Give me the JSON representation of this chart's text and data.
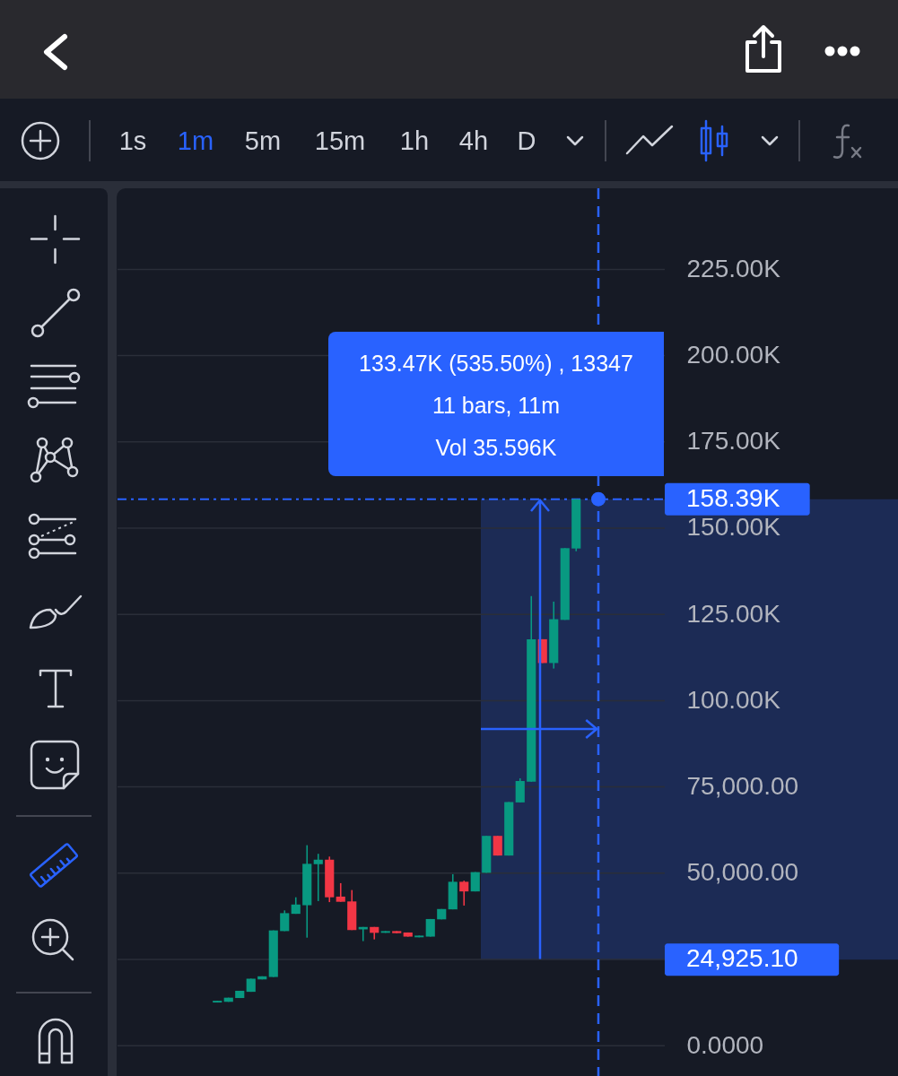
{
  "chart_data": {
    "type": "candlestick",
    "categories": [
      null,
      null,
      null,
      null,
      null,
      null,
      null,
      null,
      null,
      null,
      null,
      null,
      null,
      null,
      null,
      null,
      null,
      null,
      null,
      null,
      null,
      null,
      null,
      null,
      null,
      null,
      null,
      null,
      null,
      null,
      null,
      null,
      null,
      null,
      null,
      null,
      null,
      null,
      null,
      null,
      null,
      null,
      null,
      null,
      null,
      null,
      null,
      null
    ],
    "ohlc": [
      null,
      null,
      null,
      null,
      null,
      null,
      null,
      null,
      [
        12500,
        13000,
        12500,
        13000
      ],
      [
        12700,
        13900,
        12700,
        13900
      ],
      [
        13800,
        15900,
        13800,
        15900
      ],
      [
        15600,
        19400,
        15600,
        19400
      ],
      [
        19200,
        20100,
        19200,
        20100
      ],
      [
        19900,
        33400,
        19900,
        33400
      ],
      [
        33200,
        39200,
        33200,
        38400
      ],
      [
        38200,
        43000,
        38200,
        40900
      ],
      [
        40700,
        58100,
        31300,
        52700
      ],
      [
        52600,
        55600,
        41900,
        53900
      ],
      [
        53900,
        54800,
        41600,
        43000
      ],
      [
        43200,
        47100,
        41700,
        41700
      ],
      [
        41800,
        45100,
        33500,
        33500
      ],
      [
        33700,
        34400,
        30300,
        34400
      ],
      [
        34400,
        34400,
        30800,
        32700
      ],
      [
        32700,
        33200,
        32700,
        33200
      ],
      [
        33200,
        33200,
        32600,
        32600
      ],
      [
        32800,
        32800,
        31600,
        31600
      ],
      [
        31400,
        31900,
        31400,
        31900
      ],
      [
        31600,
        36700,
        31600,
        36700
      ],
      [
        36600,
        39600,
        36600,
        39600
      ],
      [
        39500,
        49700,
        39500,
        47500
      ],
      [
        47500,
        47800,
        40600,
        44700
      ],
      [
        44700,
        50300,
        44700,
        50300
      ],
      [
        50100,
        60800,
        50100,
        60800
      ],
      [
        60800,
        60800,
        55100,
        55100
      ],
      [
        55100,
        70600,
        55100,
        70600
      ],
      [
        70500,
        77500,
        70500,
        76700
      ],
      [
        76500,
        130300,
        76500,
        117800
      ],
      [
        117800,
        117800,
        110900,
        110900
      ],
      [
        110900,
        128700,
        109300,
        123600
      ],
      [
        123400,
        144200,
        123400,
        144200
      ],
      [
        144100,
        158390,
        143300,
        158390
      ],
      null,
      null,
      null,
      null,
      null,
      null,
      null
    ],
    "colors": [
      null,
      null,
      null,
      null,
      null,
      null,
      null,
      null,
      "#089981",
      "#089981",
      "#089981",
      "#089981",
      "#089981",
      "#089981",
      "#089981",
      "#089981",
      "#089981",
      "#089981",
      "#f23645",
      "#f23645",
      "#f23645",
      "#089981",
      "#f23645",
      "#089981",
      "#f23645",
      "#f23645",
      "#089981",
      "#089981",
      "#089981",
      "#089981",
      "#f23645",
      "#089981",
      "#089981",
      "#f23645",
      "#089981",
      "#089981",
      "#089981",
      "#f23645",
      "#089981",
      "#089981",
      "#089981",
      null,
      null,
      null,
      null,
      null,
      null,
      null
    ],
    "ylim": [
      -8800,
      248500
    ],
    "yticks": [
      {
        "value": 0,
        "label": "0.0000"
      },
      {
        "value": 25000,
        "label": null
      },
      {
        "value": 50000,
        "label": "50,000.00"
      },
      {
        "value": 75000,
        "label": "75,000.00"
      },
      {
        "value": 100000,
        "label": "100.00K"
      },
      {
        "value": 125000,
        "label": "125.00K"
      },
      {
        "value": 150000,
        "label": "150.00K"
      },
      {
        "value": 175000,
        "label": "175.00K"
      },
      {
        "value": 200000,
        "label": "200.00K"
      },
      {
        "value": 225000,
        "label": "225.00K"
      }
    ],
    "grid": "y",
    "tick_labels": "y",
    "ref_lines": [
      {
        "axis": "y",
        "value": 158390,
        "label": "158.39K",
        "color": "#2962ff",
        "line_style": "dashed"
      }
    ],
    "bands": [
      {
        "axis": "y",
        "from": 24925.1,
        "to": 158390,
        "label": "24,925.10",
        "color": "#1c2b55"
      }
    ],
    "annotations": [
      "1s",
      "1m",
      "5m",
      "15m",
      "1h",
      "4h",
      "D",
      "133.47K (535.50%) , 13347",
      "11 bars, 11m",
      "Vol 35.596K"
    ]
  }
}
